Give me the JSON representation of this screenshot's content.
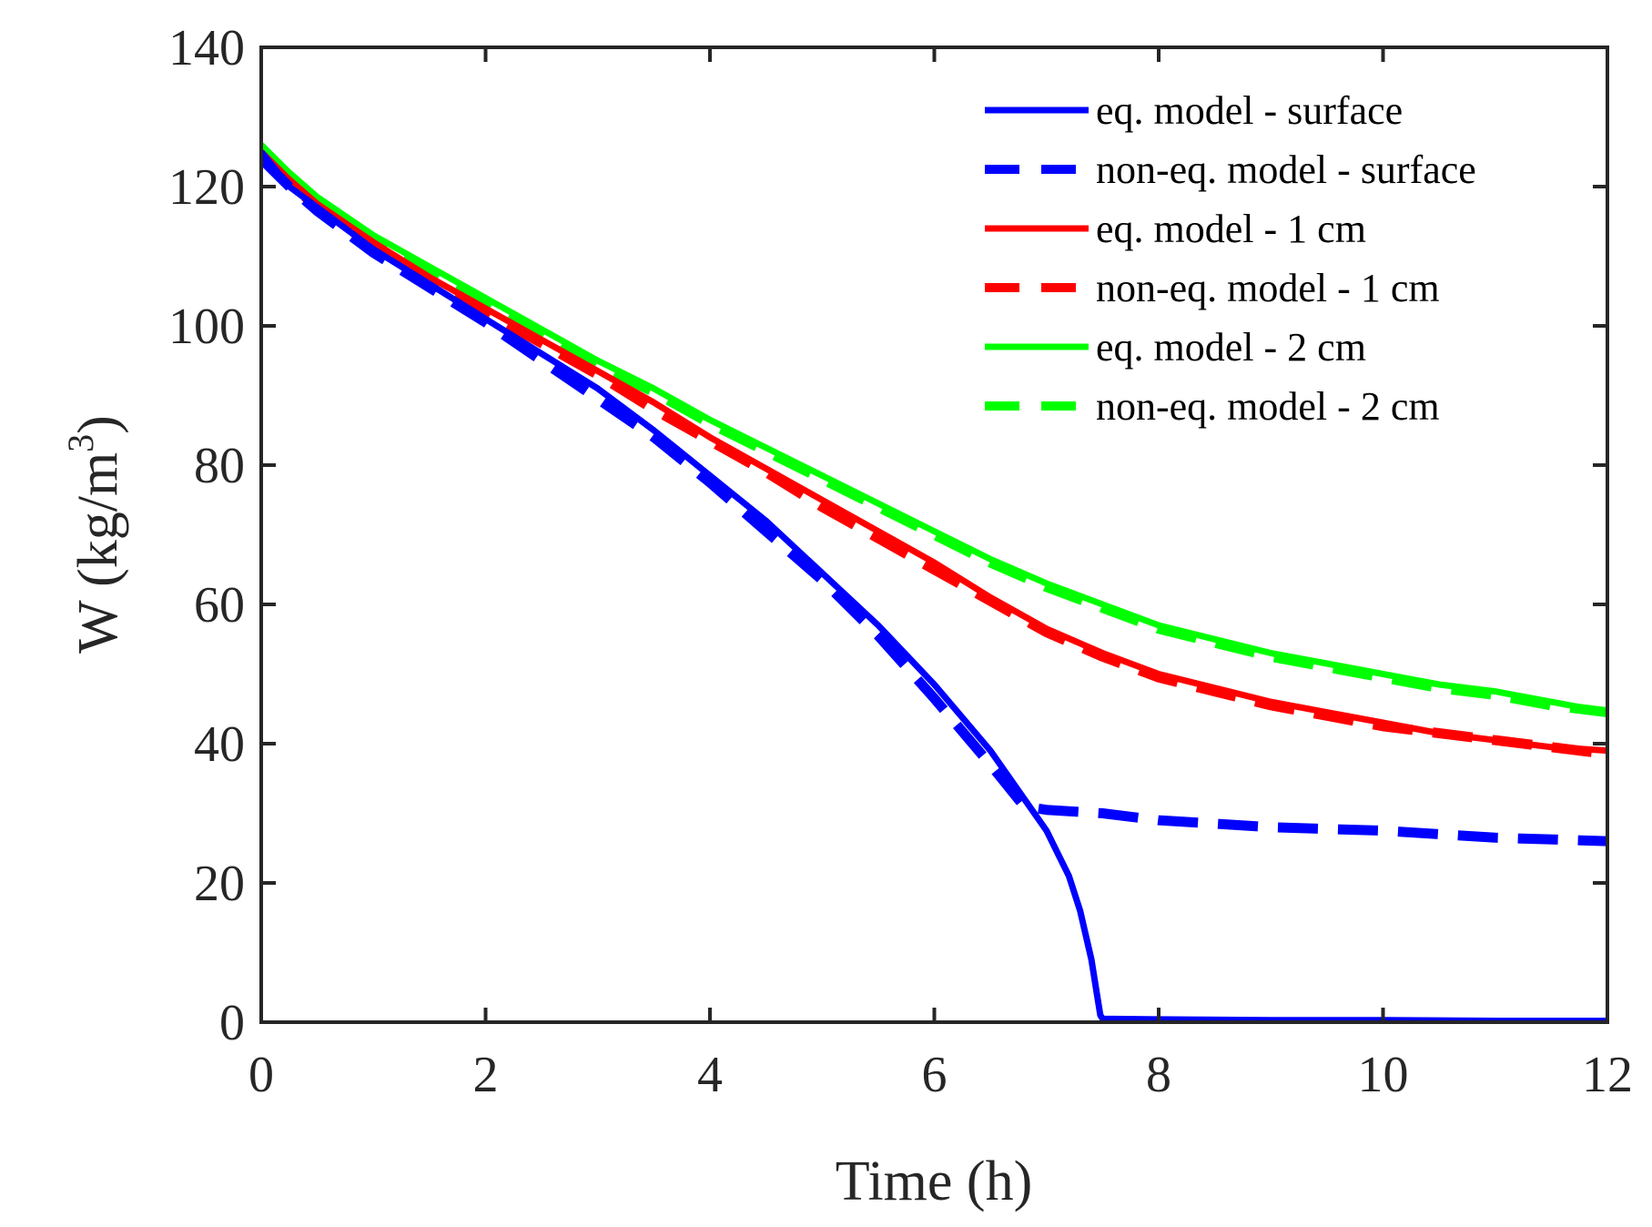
{
  "chart_data": {
    "type": "line",
    "title": "",
    "xlabel": "Time (h)",
    "ylabel": "W (kg/m",
    "ylabel_superscript": "3",
    "ylabel_suffix": ")",
    "xlim": [
      0,
      12
    ],
    "ylim": [
      0,
      140
    ],
    "xticks": [
      0,
      2,
      4,
      6,
      8,
      10,
      12
    ],
    "yticks": [
      0,
      20,
      40,
      60,
      80,
      100,
      120,
      140
    ],
    "grid": false,
    "legend_position": "top-right",
    "series": [
      {
        "name": "eq. model - surface",
        "color": "#0000ff",
        "dash": "solid",
        "x": [
          0,
          0.25,
          0.5,
          1,
          1.5,
          2,
          2.5,
          3,
          3.5,
          4,
          4.5,
          5,
          5.5,
          6,
          6.5,
          7,
          7.2,
          7.3,
          7.4,
          7.45,
          7.48,
          7.5,
          8,
          9,
          10,
          11,
          12
        ],
        "y": [
          125,
          120,
          117,
          111,
          106,
          101,
          96,
          91,
          85,
          78.5,
          72,
          64.5,
          57,
          48.5,
          39,
          27.5,
          21,
          16,
          9,
          4,
          1,
          0.5,
          0.4,
          0.3,
          0.3,
          0.2,
          0.2
        ]
      },
      {
        "name": "non-eq. model - surface",
        "color": "#0000ff",
        "dash": "dashed",
        "x": [
          0,
          0.25,
          0.5,
          1,
          1.5,
          2,
          2.5,
          3,
          3.5,
          4,
          4.5,
          5,
          5.5,
          6,
          6.5,
          6.8,
          7,
          7.5,
          8,
          9,
          10,
          11,
          12
        ],
        "y": [
          124,
          120,
          116.5,
          110.5,
          105.5,
          100.5,
          95,
          89.5,
          84,
          77.5,
          70.5,
          63.5,
          55.5,
          46.5,
          37,
          31,
          30.5,
          30,
          29,
          28,
          27.5,
          26.5,
          26
        ]
      },
      {
        "name": "eq. model - 1 cm",
        "color": "#ff0000",
        "dash": "solid",
        "x": [
          0,
          0.25,
          0.5,
          1,
          1.5,
          2,
          2.5,
          3,
          3.5,
          4,
          4.5,
          5,
          5.5,
          6,
          6.5,
          7,
          7.5,
          8,
          8.5,
          9,
          9.5,
          10,
          10.5,
          11,
          11.5,
          12
        ],
        "y": [
          125,
          121,
          117.5,
          112,
          107,
          102.5,
          98,
          93.5,
          89,
          84,
          79.5,
          75,
          70.5,
          66,
          61,
          56.5,
          53,
          50,
          48,
          46,
          44.5,
          43,
          41.5,
          40.5,
          39.5,
          39
        ]
      },
      {
        "name": "non-eq. model - 1 cm",
        "color": "#ff0000",
        "dash": "dashed",
        "x": [
          0,
          0.25,
          0.5,
          1,
          1.5,
          2,
          2.5,
          3,
          3.5,
          4,
          4.5,
          5,
          5.5,
          6,
          6.5,
          7,
          7.5,
          8,
          8.5,
          9,
          9.5,
          10,
          10.5,
          11,
          11.5,
          12
        ],
        "y": [
          124.5,
          120.5,
          117,
          111.5,
          106.5,
          102,
          97.5,
          93,
          88,
          83.5,
          79,
          74,
          69.5,
          65,
          60.5,
          56,
          52.5,
          49.5,
          47.5,
          45.5,
          44,
          42.5,
          41.5,
          40.5,
          39.5,
          38.5
        ]
      },
      {
        "name": "eq. model - 2 cm",
        "color": "#00ff00",
        "dash": "solid",
        "x": [
          0,
          0.25,
          0.5,
          1,
          1.5,
          2,
          2.5,
          3,
          3.5,
          4,
          4.5,
          5,
          5.5,
          6,
          6.5,
          7,
          7.5,
          8,
          8.5,
          9,
          9.5,
          10,
          10.5,
          11,
          11.5,
          12
        ],
        "y": [
          126,
          122,
          118.5,
          113,
          108.5,
          104,
          99.5,
          95,
          91,
          86.5,
          82.5,
          78.5,
          74.5,
          70.5,
          66.5,
          63,
          60,
          57,
          55,
          53,
          51.5,
          50,
          48.5,
          47.5,
          46,
          44.5
        ]
      },
      {
        "name": "non-eq. model - 2 cm",
        "color": "#00ff00",
        "dash": "dashed",
        "x": [
          0,
          0.25,
          0.5,
          1,
          1.5,
          2,
          2.5,
          3,
          3.5,
          4,
          4.5,
          5,
          5.5,
          6,
          6.5,
          7,
          7.5,
          8,
          8.5,
          9,
          9.5,
          10,
          10.5,
          11,
          11.5,
          12
        ],
        "y": [
          125.5,
          121.5,
          118,
          112.5,
          108,
          103.5,
          99,
          94.5,
          90.5,
          86,
          82,
          78,
          74,
          70,
          66,
          62.5,
          59.5,
          56.5,
          54.5,
          52.5,
          51,
          49.5,
          48,
          47,
          45.5,
          44.5
        ]
      }
    ]
  }
}
